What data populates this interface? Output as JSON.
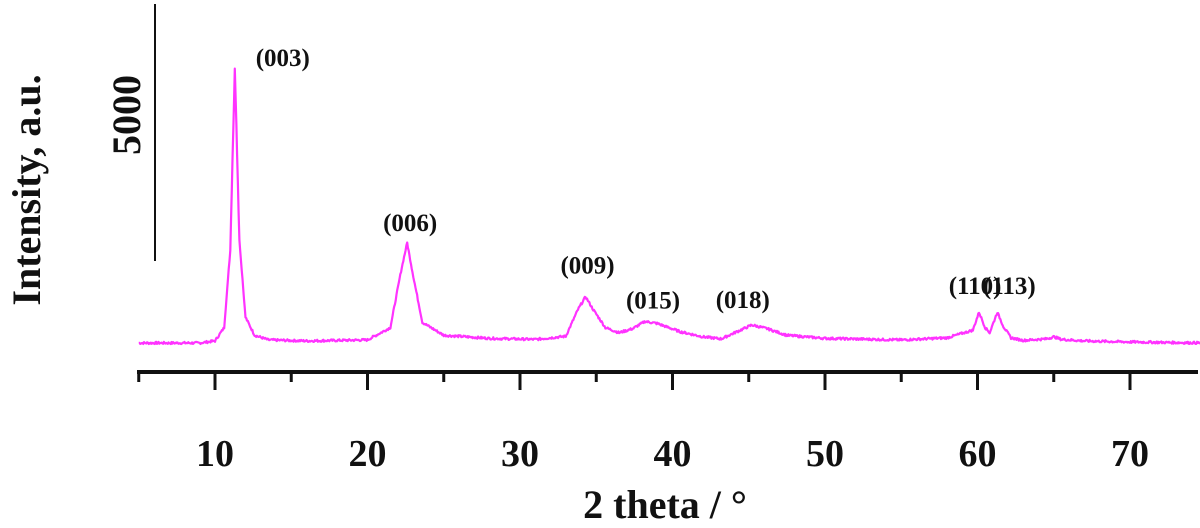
{
  "chart_data": {
    "type": "line",
    "title": "",
    "xlabel": "2 theta / °",
    "ylabel": "Intensity, a.u.",
    "xlim": [
      5,
      75
    ],
    "x_ticks": [
      10,
      20,
      30,
      40,
      50,
      60,
      70
    ],
    "x_tick_labels": [
      "10",
      "20",
      "30",
      "40",
      "50",
      "60",
      "70"
    ],
    "scale_bar": {
      "label": "5000",
      "value": 5000
    },
    "grid": false,
    "legend": "none",
    "series_color": "#ff33ff",
    "series": [
      {
        "values_note_x": [
          5,
          9,
          10,
          10.6,
          11.0,
          11.3,
          11.6,
          12.0,
          12.6,
          13.5,
          16,
          20,
          21.5,
          22.2,
          22.6,
          23.0,
          23.6,
          25,
          28,
          31,
          33,
          33.8,
          34.3,
          34.8,
          35.6,
          36.5,
          37.4,
          38.2,
          39.0,
          40.5,
          42,
          43.2,
          44.3,
          45.2,
          46.2,
          47.5,
          50,
          55,
          58,
          59.7,
          60.1,
          60.5,
          60.8,
          61.3,
          61.7,
          62.2,
          63,
          64.5,
          65.0,
          65.5,
          67,
          70,
          75
        ],
        "y": [
          0,
          0,
          40,
          300,
          1800,
          5350,
          2000,
          500,
          150,
          60,
          40,
          60,
          300,
          1400,
          1950,
          1300,
          400,
          150,
          90,
          70,
          130,
          650,
          900,
          650,
          300,
          200,
          280,
          420,
          380,
          220,
          120,
          80,
          230,
          350,
          280,
          150,
          90,
          60,
          100,
          250,
          600,
          300,
          200,
          600,
          320,
          100,
          50,
          80,
          120,
          70,
          40,
          20,
          0
        ]
      }
    ],
    "annotations": [
      {
        "text": "(003)",
        "x": 11.3,
        "y": 5350
      },
      {
        "text": "(006)",
        "x": 22.6,
        "y": 1950
      },
      {
        "text": "(009)",
        "x": 34.3,
        "y": 900
      },
      {
        "text": "(015)",
        "x": 38.2,
        "y": 420
      },
      {
        "text": "(018)",
        "x": 45.2,
        "y": 350
      },
      {
        "text": "(110)",
        "x": 60.5,
        "y": 600
      },
      {
        "text": "(113)",
        "x": 61.3,
        "y": 600
      }
    ]
  }
}
